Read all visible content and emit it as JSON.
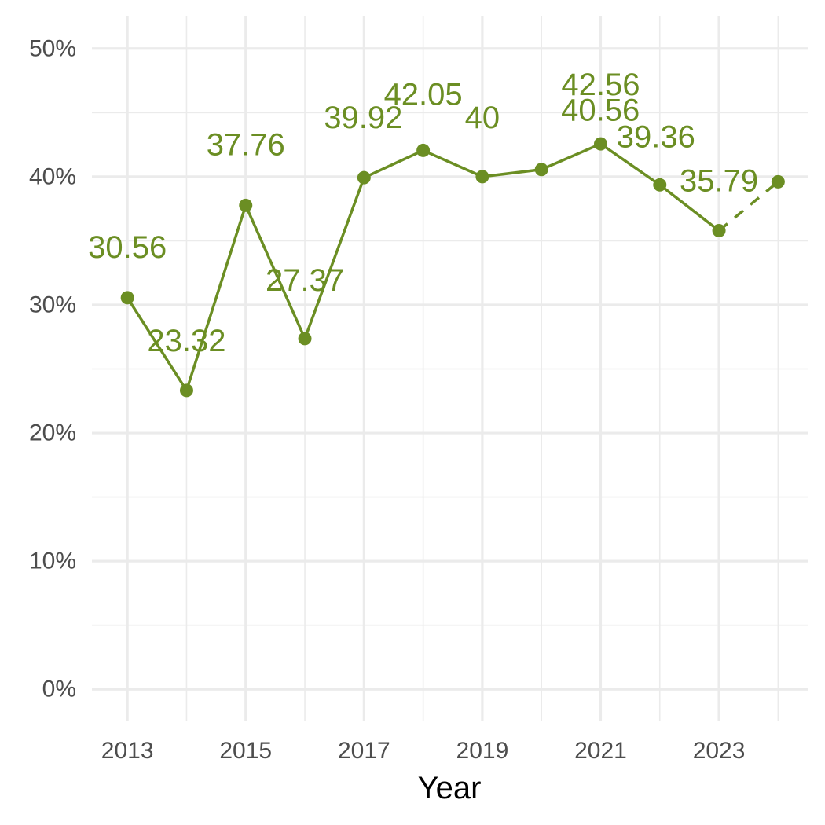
{
  "chart_data": {
    "type": "line",
    "title": "",
    "xlabel": "Year",
    "ylabel": "",
    "x": [
      2013,
      2014,
      2015,
      2016,
      2017,
      2018,
      2019,
      2020,
      2021,
      2022,
      2023,
      2024
    ],
    "series": [
      {
        "values": [
          30.56,
          23.32,
          37.76,
          27.37,
          39.92,
          42.05,
          40,
          40.56,
          42.56,
          39.36,
          35.79,
          39.6
        ],
        "data_labels": [
          "30.56",
          "23.32",
          "37.76",
          "27.37",
          "39.92",
          "42.05",
          "40",
          "40.56",
          "42.56",
          "39.36",
          "35.79",
          ""
        ],
        "dashed_from_x": 2023,
        "color": "#6b8e23"
      }
    ],
    "xlim": [
      2012.4,
      2024.5
    ],
    "ylim": [
      -2.5,
      52.5
    ],
    "x_ticks": [
      2013,
      2015,
      2017,
      2019,
      2021,
      2023
    ],
    "x_tick_labels": [
      "2013",
      "2015",
      "2017",
      "2019",
      "2021",
      "2023"
    ],
    "y_ticks": [
      0,
      10,
      20,
      30,
      40,
      50
    ],
    "y_tick_labels": [
      "0%",
      "10%",
      "20%",
      "30%",
      "40%",
      "50%"
    ],
    "grid": true,
    "legend": "none",
    "colors": {
      "grid": "#ebebeb",
      "tick_text": "#4d4d4d",
      "axis_title": "#000000"
    }
  }
}
